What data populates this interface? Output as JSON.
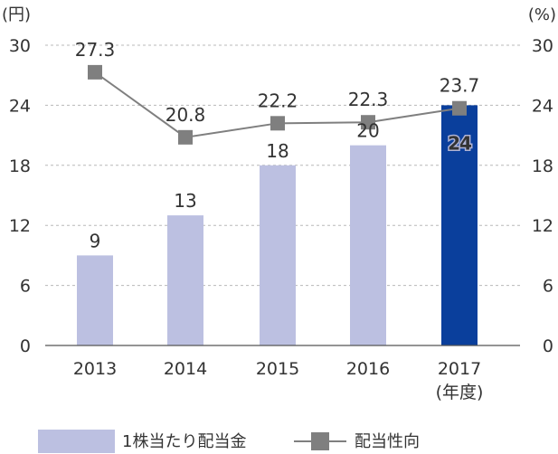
{
  "chart_data": {
    "type": "bar",
    "categories": [
      "2013",
      "2014",
      "2015",
      "2016",
      "2017"
    ],
    "x_sublabel_last": "(年度)",
    "left_unit": "(円)",
    "right_unit": "(%)",
    "y_ticks_left": [
      "0",
      "6",
      "12",
      "18",
      "24",
      "30"
    ],
    "y_ticks_right": [
      "0",
      "6",
      "12",
      "18",
      "24",
      "30"
    ],
    "ylim": [
      0,
      30
    ],
    "grid": true,
    "series": [
      {
        "name": "1株当たり配当金",
        "kind": "bar",
        "values": [
          9,
          13,
          18,
          20,
          24
        ],
        "labels": [
          "9",
          "13",
          "18",
          "20",
          "24"
        ],
        "color": "#bcc0e1",
        "highlight_color": "#0a3f9c",
        "highlight_index": 4
      },
      {
        "name": "配当性向",
        "kind": "line",
        "values": [
          27.3,
          20.8,
          22.2,
          22.3,
          23.7
        ],
        "labels": [
          "27.3",
          "20.8",
          "22.2",
          "22.3",
          "23.7"
        ],
        "color": "#7f7f7f",
        "marker": "square",
        "highlight_label_color": "#2a5da8",
        "highlight_index": 4
      }
    ],
    "legend_position": "bottom"
  }
}
